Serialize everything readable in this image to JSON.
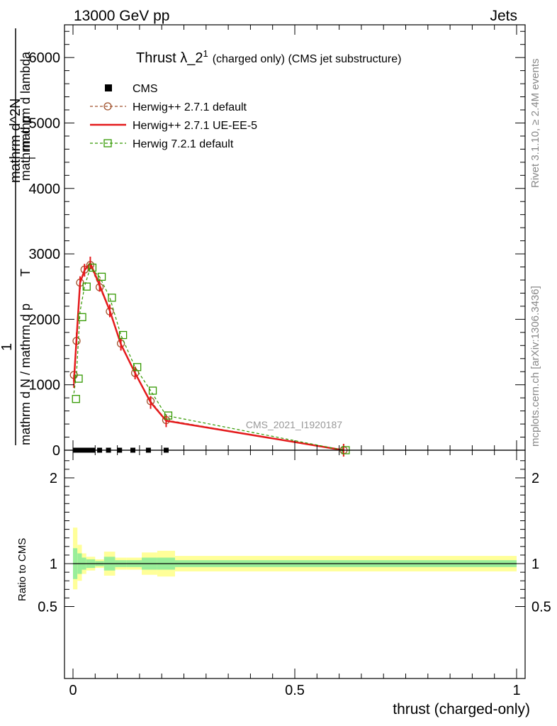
{
  "header": {
    "left": "13000 GeV pp",
    "right": "Jets"
  },
  "side_labels": {
    "rivet": "Rivet 3.1.10, ≥ 2.4M events",
    "site": "mcplots.cern.ch [arXiv:1306.3436]"
  },
  "chart_data": [
    {
      "type": "line",
      "title": "Thrust λ_2",
      "title_sup": "1",
      "title_suffix": "(charged only) (CMS jet substructure)",
      "watermark": "CMS_2021_I1920187",
      "ylabel_parts": [
        "mathrm d N / mathrm d p",
        "mathrm d N / mathrm d p",
        "T",
        "mathrm d N / mathrm d p",
        "mathrm d^2N",
        "mathrm d p",
        "T",
        "mathrm d lambda",
        "1"
      ],
      "ylim": [
        0,
        6500
      ],
      "xlim": [
        -0.02,
        1.0
      ],
      "y_ticks": [
        0,
        1000,
        2000,
        3000,
        4000,
        5000,
        6000
      ],
      "legend": [
        {
          "name": "CMS",
          "color": "#000000"
        },
        {
          "name": "Herwig++ 2.7.1 default",
          "color": "#a0522d"
        },
        {
          "name": "Herwig++ 2.7.1 UE-EE-5",
          "color": "#e41a1c"
        },
        {
          "name": "Herwig 7.2.1 default",
          "color": "#339900"
        }
      ],
      "series": [
        {
          "name": "CMS",
          "x": [
            0.005,
            0.015,
            0.025,
            0.035,
            0.045,
            0.06,
            0.08,
            0.105,
            0.135,
            0.17,
            0.21
          ],
          "y": [
            0,
            0,
            0,
            0,
            0,
            0,
            0,
            0,
            0,
            0,
            0
          ]
        },
        {
          "name": "Herwig++ 2.7.1 default",
          "x": [
            0.002,
            0.008,
            0.016,
            0.026,
            0.039,
            0.06,
            0.083,
            0.108,
            0.14,
            0.175,
            0.21,
            0.61
          ],
          "y": [
            1150,
            1670,
            2560,
            2760,
            2830,
            2490,
            2120,
            1630,
            1180,
            750,
            460,
            0
          ]
        },
        {
          "name": "Herwig++ 2.7.1 UE-EE-5",
          "x": [
            0.002,
            0.008,
            0.016,
            0.026,
            0.039,
            0.06,
            0.083,
            0.108,
            0.14,
            0.175,
            0.21,
            0.61
          ],
          "y": [
            1050,
            1700,
            2560,
            2750,
            2860,
            2520,
            2130,
            1620,
            1180,
            730,
            450,
            0
          ]
        },
        {
          "name": "Herwig 7.2.1 default",
          "x": [
            0.002,
            0.008,
            0.016,
            0.026,
            0.039,
            0.06,
            0.083,
            0.108,
            0.14,
            0.175,
            0.21,
            0.61
          ],
          "y": [
            870,
            1180,
            2120,
            2500,
            2790,
            2650,
            2330,
            1760,
            1270,
            910,
            530,
            0
          ]
        }
      ]
    },
    {
      "type": "area",
      "ylabel": "Ratio to CMS",
      "xlabel": "thrust (charged-only)",
      "ylim": [
        0.35,
        2.25
      ],
      "xlim": [
        -0.02,
        1.0
      ],
      "y_ticks": [
        "0.5",
        "1",
        "2"
      ],
      "x_ticks": [
        "0",
        "0.5",
        "1"
      ],
      "bands": {
        "edges": [
          0.0,
          0.01,
          0.02,
          0.03,
          0.04,
          0.05,
          0.07,
          0.095,
          0.12,
          0.155,
          0.19,
          0.23,
          1.0
        ],
        "inner_lo": [
          0.82,
          0.88,
          0.93,
          0.95,
          0.95,
          0.97,
          0.92,
          0.96,
          0.96,
          0.93,
          0.93,
          0.96
        ],
        "inner_hi": [
          1.18,
          1.12,
          1.07,
          1.05,
          1.05,
          1.03,
          1.08,
          1.04,
          1.04,
          1.07,
          1.07,
          1.04
        ],
        "outer_lo": [
          0.7,
          0.8,
          0.88,
          0.92,
          0.92,
          0.95,
          0.86,
          0.93,
          0.93,
          0.87,
          0.85,
          0.91
        ],
        "outer_hi": [
          1.42,
          1.22,
          1.12,
          1.08,
          1.08,
          1.05,
          1.14,
          1.07,
          1.07,
          1.13,
          1.15,
          1.09
        ],
        "inner_color": "#99ee99",
        "outer_color": "#ffff99"
      }
    }
  ]
}
